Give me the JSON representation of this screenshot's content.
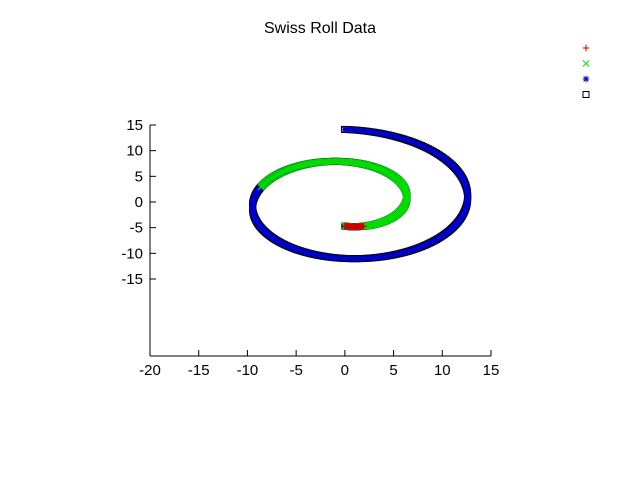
{
  "chart_data": {
    "type": "scatter",
    "title": "Swiss Roll Data",
    "xlim": [
      -20,
      15
    ],
    "ylim": [
      -30,
      15
    ],
    "xticks": [
      -20,
      -15,
      -10,
      -5,
      0,
      5,
      10,
      15
    ],
    "yticks": [
      15,
      10,
      5,
      0,
      -5,
      -10,
      -15
    ],
    "grid": false,
    "legend_position": "top-right",
    "series": [
      {
        "name": "",
        "color": "#cc0000",
        "marker": "plus",
        "t_range": [
          4.71,
          5.1
        ]
      },
      {
        "name": "",
        "color": "#00dd00",
        "marker": "cross",
        "t_range": [
          4.71,
          9.1
        ]
      },
      {
        "name": "",
        "color": "#0000cc",
        "marker": "asterisk",
        "t_range": [
          4.71,
          14.14
        ]
      },
      {
        "name": "",
        "color": "#000000",
        "marker": "square",
        "t_range": [
          4.71,
          14.14
        ]
      }
    ]
  }
}
